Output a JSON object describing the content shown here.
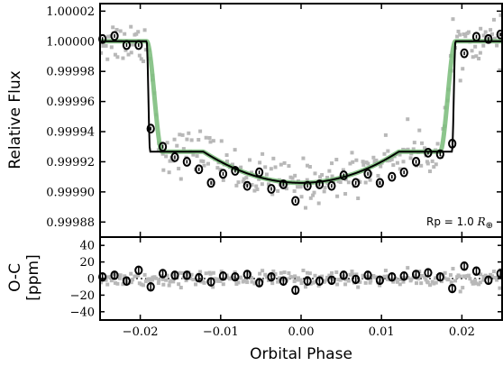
{
  "chart_data": [
    {
      "type": "scatter",
      "title": "",
      "xlabel": "",
      "ylabel": "Relative Flux",
      "xlim": [
        -0.025,
        0.025
      ],
      "ylim": [
        0.99987,
        1.000025
      ],
      "xticks": [],
      "yticks": [
        0.99988,
        0.9999,
        0.99992,
        0.99994,
        0.99996,
        0.99998,
        1.0,
        1.00002
      ],
      "ytick_labels": [
        "0.99988",
        "0.99990",
        "0.99992",
        "0.99994",
        "0.99996",
        "0.99998",
        "1.00000",
        "1.00002"
      ],
      "annotation_parts": {
        "prefix": "Rp = 1.0 ",
        "r_symbol": "R",
        "sub_symbol": "⊕"
      },
      "colors": {
        "raw": "#b8b8b8",
        "binned": "#000000",
        "fit": "#7fbf7f",
        "model": "#000000"
      },
      "transit": {
        "t14_half": 0.0192,
        "ingress": 0.0012,
        "depth_center": 9.4e-05,
        "limb_u": 0.6
      },
      "binned": {
        "x": [
          -0.0247,
          -0.0232,
          -0.0217,
          -0.0202,
          -0.0187,
          -0.0172,
          -0.0157,
          -0.0142,
          -0.0127,
          -0.0112,
          -0.0097,
          -0.0082,
          -0.0067,
          -0.0052,
          -0.0037,
          -0.0022,
          -0.0007,
          0.0008,
          0.0023,
          0.0038,
          0.0053,
          0.0068,
          0.0083,
          0.0098,
          0.0113,
          0.0128,
          0.0143,
          0.0158,
          0.0173,
          0.0188,
          0.0203,
          0.0218,
          0.0233,
          0.0248
        ],
        "y": [
          1.0000015,
          1.0000035,
          0.9999975,
          0.9999975,
          0.999942,
          0.99993,
          0.999923,
          0.99992,
          0.999915,
          0.999906,
          0.999912,
          0.999914,
          0.999904,
          0.999913,
          0.999902,
          0.999905,
          0.999894,
          0.999904,
          0.999905,
          0.999904,
          0.999911,
          0.999906,
          0.999912,
          0.999906,
          0.99991,
          0.999913,
          0.99992,
          0.999926,
          0.999925,
          0.999932,
          0.999992,
          1.000003,
          1.0000015,
          1.0000045
        ],
        "yerr": 1.2e-06
      },
      "raw": {
        "n": 260,
        "scatter_sigma": 7.5e-06
      }
    },
    {
      "type": "scatter",
      "title": "",
      "xlabel": "Orbital Phase",
      "ylabel_lines": [
        "O-C",
        "[ppm]"
      ],
      "xlim": [
        -0.025,
        0.025
      ],
      "ylim": [
        -50,
        50
      ],
      "xticks": [
        -0.02,
        -0.01,
        0.0,
        0.01,
        0.02
      ],
      "xtick_labels": [
        "−0.02",
        "−0.01",
        "0.00",
        "0.01",
        "0.02"
      ],
      "yticks": [
        -40,
        -20,
        0,
        20,
        40
      ],
      "ytick_labels": [
        "−40",
        "−20",
        "0",
        "20",
        "40"
      ],
      "residuals": {
        "y": [
          2,
          4,
          -3,
          10,
          -10,
          6,
          4,
          4,
          1,
          -4,
          3,
          2,
          5,
          -5,
          2,
          -3,
          -14,
          -3,
          -3,
          -2,
          4,
          -1,
          4,
          -2,
          2,
          3,
          5,
          7,
          2,
          -12,
          15,
          9,
          -2,
          6
        ],
        "yerr": 4
      }
    }
  ]
}
